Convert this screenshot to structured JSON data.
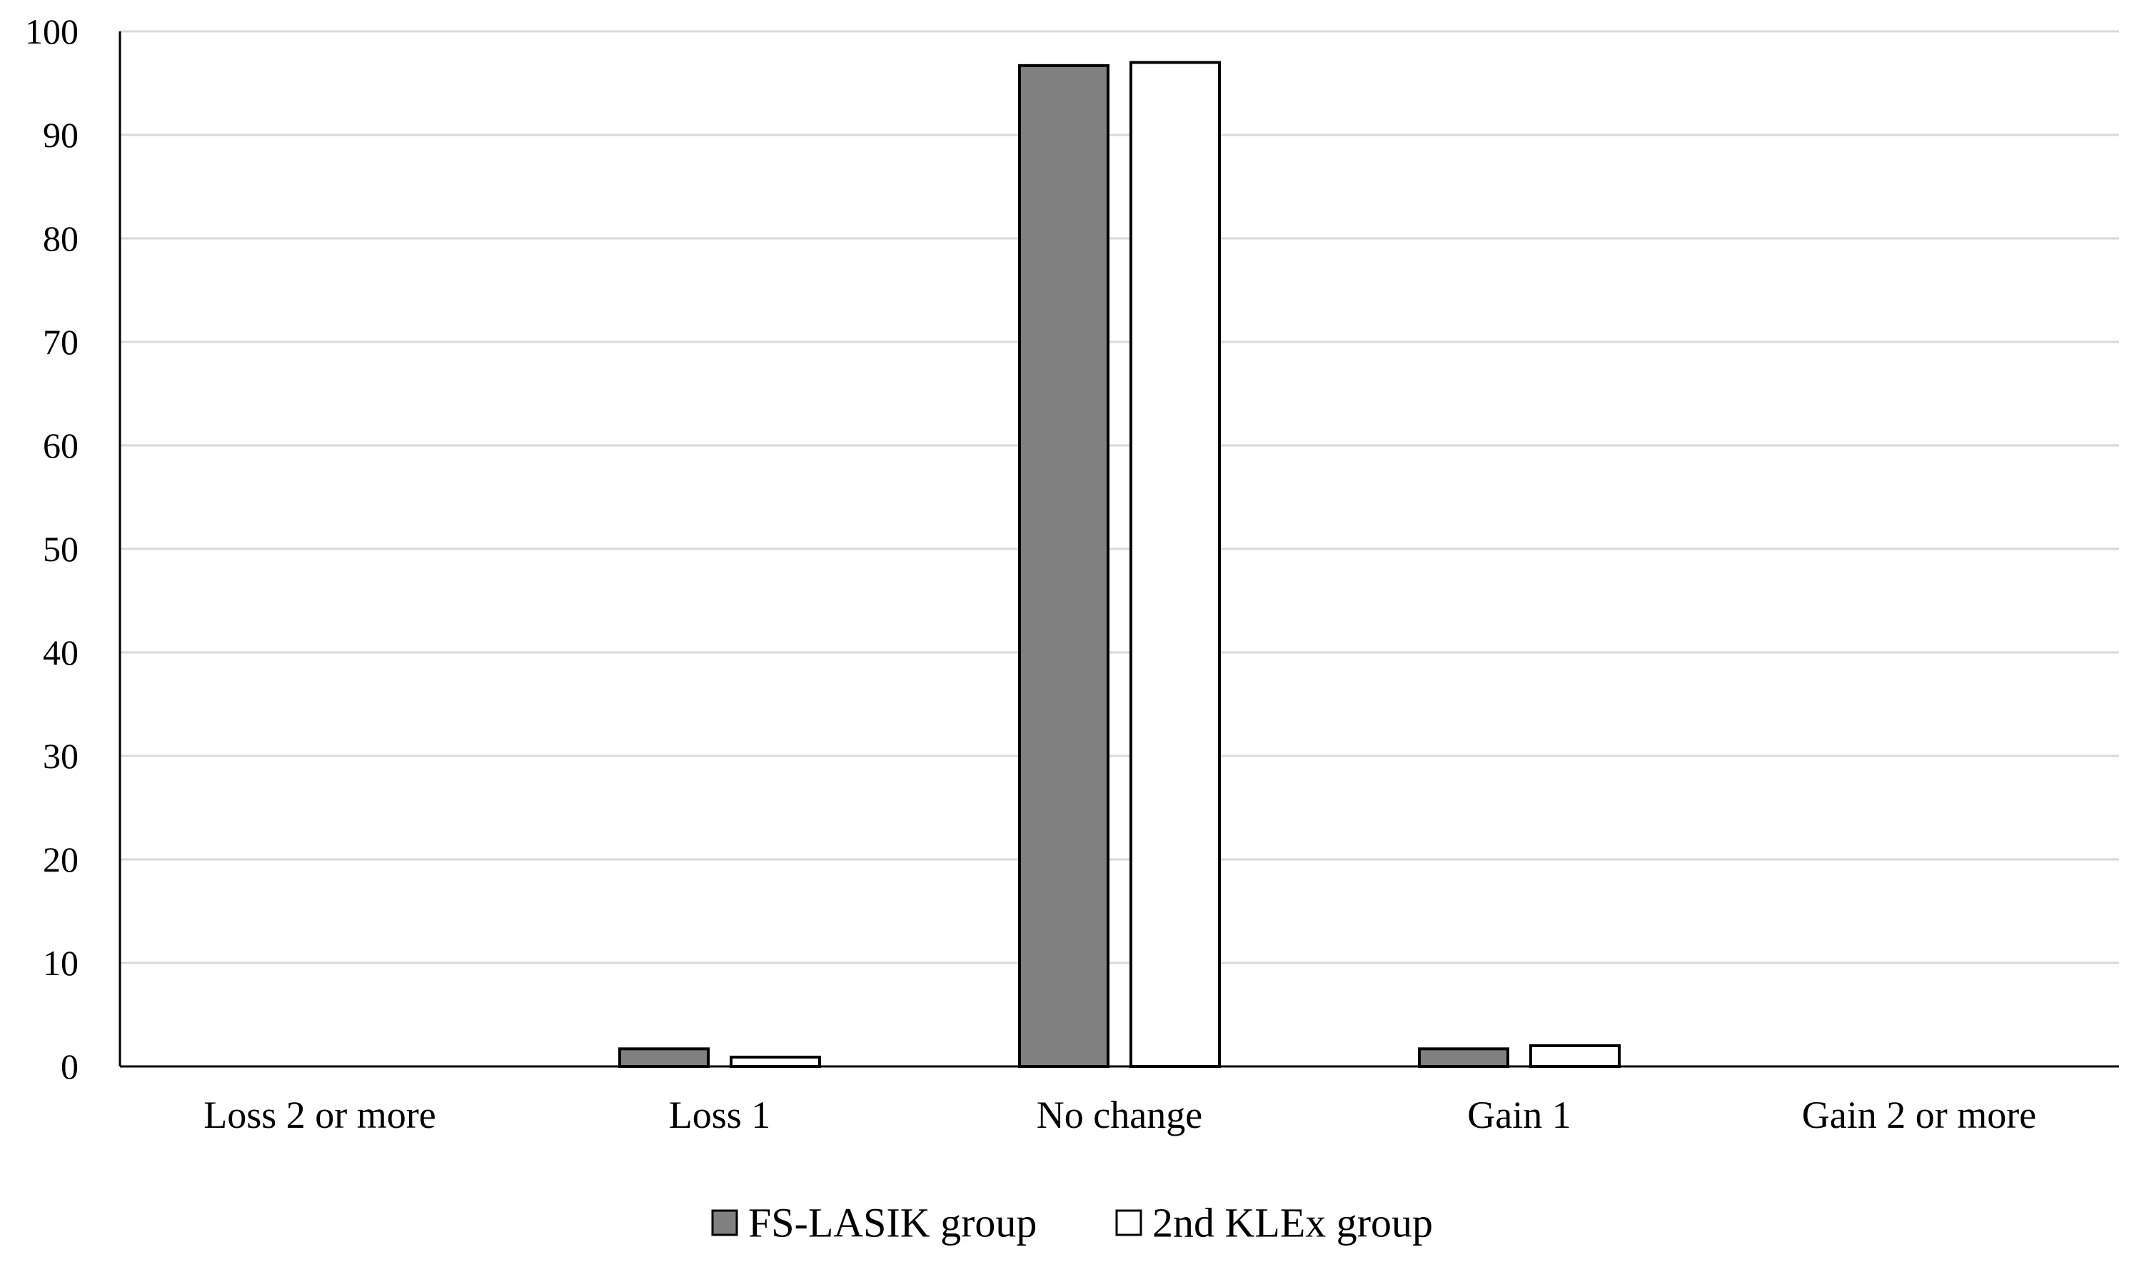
{
  "chart_data": {
    "type": "bar",
    "title": "",
    "xlabel": "",
    "ylabel": "",
    "categories": [
      "Loss 2 or more",
      "Loss 1",
      "No change",
      "Gain 1",
      "Gain 2 or more"
    ],
    "series": [
      {
        "name": "FS-LASIK group",
        "values": [
          0,
          1.7,
          96.7,
          1.7,
          0
        ],
        "color": "#808080"
      },
      {
        "name": "2nd KLEx group",
        "values": [
          0,
          0.9,
          97.0,
          2.0,
          0
        ],
        "color": "#ffffff"
      }
    ],
    "ylim": [
      0,
      100
    ],
    "yticks": [
      0,
      10,
      20,
      30,
      40,
      50,
      60,
      70,
      80,
      90,
      100
    ],
    "grid": true,
    "legend_position": "bottom"
  }
}
